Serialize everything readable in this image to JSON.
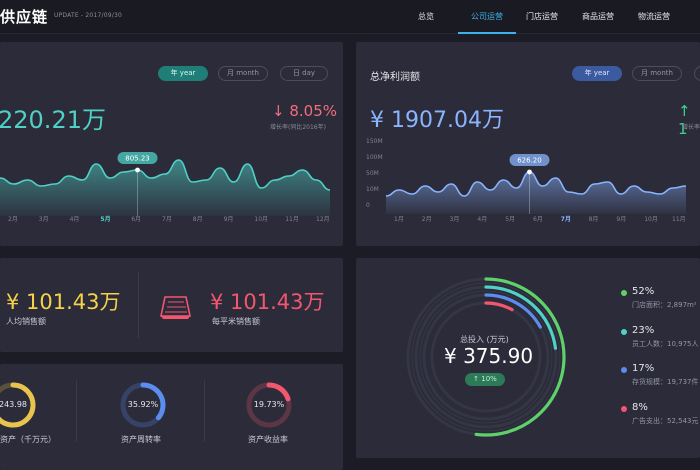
{
  "app": {
    "brand": "供应链",
    "update": "UPDATE - 2017/09/30"
  },
  "nav": [
    {
      "label": "总览"
    },
    {
      "label": "公司运营"
    },
    {
      "label": "门店运营"
    },
    {
      "label": "商品运营"
    },
    {
      "label": "物流运营"
    }
  ],
  "left_chart": {
    "tabs": [
      "年 year",
      "月 month",
      "日 day"
    ],
    "value": "220.21万",
    "change": "↓ 8.05%",
    "change_note": "增长率(同比2016年)",
    "tooltip": "805.23",
    "months": [
      "2月",
      "3月",
      "4月",
      "5月",
      "6月",
      "7月",
      "8月",
      "9月",
      "10月",
      "11月",
      "12月"
    ],
    "color": "#4fd1c5",
    "highlight_month": "5月"
  },
  "right_chart": {
    "title": "总净利润额",
    "tabs": [
      "年 year",
      "月 month"
    ],
    "value": "¥ 1907.04万",
    "change": "↑ 1",
    "change_note": "增长率",
    "tooltip": "626.20",
    "y_ticks": [
      "150M",
      "100M",
      "50M",
      "10M",
      "0"
    ],
    "months": [
      "1月",
      "2月",
      "3月",
      "4月",
      "5月",
      "6月",
      "7月",
      "8月",
      "9月",
      "10月",
      "11月"
    ],
    "color": "#8ab4ff",
    "highlight_month": "7月"
  },
  "sales": {
    "per_person_value": "¥ 101.43万",
    "per_person_label": "人均销售额",
    "per_sqm_value": "¥ 101.43万",
    "per_sqm_label": "每平米销售额"
  },
  "rings": [
    {
      "value": "243.98",
      "label": "资产（千万元）",
      "color": "#e8c34d",
      "fraction": 0.78
    },
    {
      "value": "35.92%",
      "label": "资产周转率",
      "color": "#5b8def",
      "fraction": 0.36
    },
    {
      "value": "19.73%",
      "label": "资产收益率",
      "color": "#f2576f",
      "fraction": 0.2
    }
  ],
  "investment": {
    "label": "总投入 (万元)",
    "value": "¥ 375.90",
    "badge": "↑ 10%",
    "legend": [
      {
        "pct": "52%",
        "label": "门店面积：2,897m²",
        "color": "#5fd16b"
      },
      {
        "pct": "23%",
        "label": "员工人数：10,975人",
        "color": "#4fd1c5"
      },
      {
        "pct": "17%",
        "label": "存货规模：19,737件",
        "color": "#5b8def"
      },
      {
        "pct": "8%",
        "label": "广告支出：52,543元",
        "color": "#f2576f"
      }
    ]
  }
}
